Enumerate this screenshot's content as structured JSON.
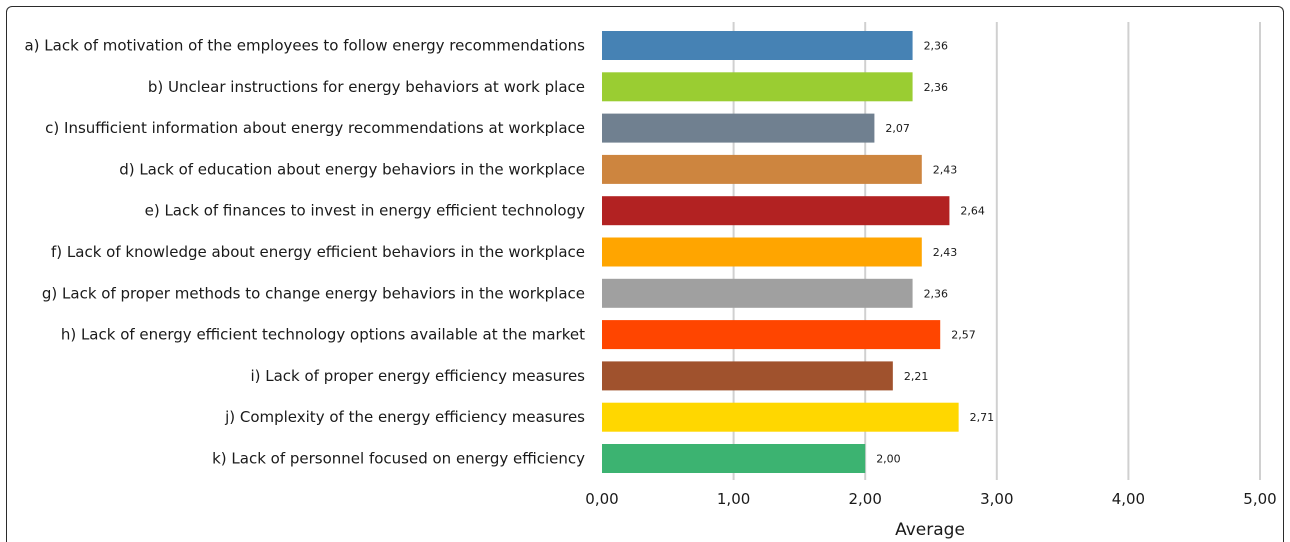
{
  "chart_data": {
    "type": "bar",
    "orientation": "horizontal",
    "categories": [
      "a) Lack of motivation of the employees to follow energy recommendations",
      "b) Unclear instructions for energy behaviors at work place",
      "c) Insufficient information about energy recommendations at workplace",
      "d) Lack of education about energy behaviors in the workplace",
      "e) Lack of finances to invest in energy efficient technology",
      "f) Lack of knowledge about energy efficient behaviors in the workplace",
      "g) Lack of proper methods to change energy behaviors in the workplace",
      "h) Lack of energy efficient technology options available at the market",
      "i) Lack of proper energy efficiency measures",
      "j) Complexity of the energy efficiency measures",
      "k) Lack of personnel focused on energy efficiency"
    ],
    "values": [
      2.36,
      2.36,
      2.07,
      2.43,
      2.64,
      2.43,
      2.36,
      2.57,
      2.21,
      2.71,
      2.0
    ],
    "value_labels": [
      "2,36",
      "2,36",
      "2,07",
      "2,43",
      "2,64",
      "2,43",
      "2,36",
      "2,57",
      "2,21",
      "2,71",
      "2,00"
    ],
    "colors": [
      "#4682B4",
      "#9ACD32",
      "#708090",
      "#CD853F",
      "#B22222",
      "#FFA500",
      "#A0A0A0",
      "#FF4500",
      "#A0522D",
      "#FFD700",
      "#3CB371"
    ],
    "xlabel": "Average",
    "ylabel": "",
    "title": "",
    "xlim": [
      0,
      5
    ],
    "xticks": [
      0,
      1,
      2,
      3,
      4,
      5
    ],
    "xtick_labels": [
      "0,00",
      "1,00",
      "2,00",
      "3,00",
      "4,00",
      "5,00"
    ],
    "grid": "vertical"
  }
}
